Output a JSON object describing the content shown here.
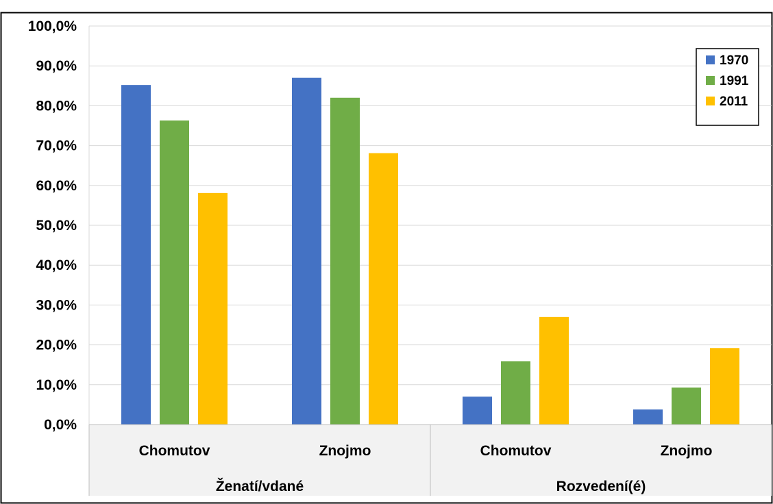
{
  "chart_data": {
    "type": "bar",
    "groups": [
      {
        "label": "Ženatí/vdané",
        "categories": [
          "Chomutov",
          "Znojmo"
        ]
      },
      {
        "label": "Rozvedení(é)",
        "categories": [
          "Chomutov",
          "Znojmo"
        ]
      }
    ],
    "categories": [
      "Chomutov",
      "Znojmo",
      "Chomutov",
      "Znojmo"
    ],
    "series": [
      {
        "name": "1970",
        "color": "#4472C4",
        "values": [
          85.2,
          87.0,
          7.0,
          3.8
        ]
      },
      {
        "name": "1991",
        "color": "#70AD47",
        "values": [
          76.3,
          82.0,
          15.9,
          9.3
        ]
      },
      {
        "name": "2011",
        "color": "#FFC000",
        "values": [
          58.1,
          68.1,
          27.0,
          19.2
        ]
      }
    ],
    "ylim": [
      0,
      100
    ],
    "yticks": [
      0,
      10,
      20,
      30,
      40,
      50,
      60,
      70,
      80,
      90,
      100
    ],
    "ytick_labels": [
      "0,0%",
      "10,0%",
      "20,0%",
      "30,0%",
      "40,0%",
      "50,0%",
      "60,0%",
      "70,0%",
      "80,0%",
      "90,0%",
      "100,0%"
    ],
    "grid": true,
    "legend_position": "top-right"
  }
}
